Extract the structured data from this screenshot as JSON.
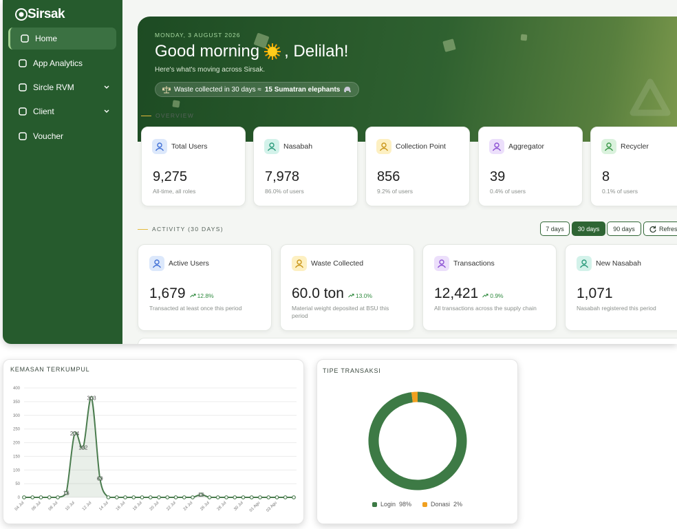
{
  "sidebar": {
    "logo": "Sirsak",
    "nav": [
      {
        "label": "Home",
        "active": true
      },
      {
        "label": "App Analytics"
      },
      {
        "label": "Sircle RVM",
        "submenu": true
      },
      {
        "label": "Client",
        "submenu": true
      },
      {
        "label": "Voucher"
      }
    ]
  },
  "hero": {
    "date": "MONDAY, 3 AUGUST 2026",
    "greeting": "Good morning",
    "name": ", Delilah!",
    "subtitle": "Here's what's moving across Sirsak.",
    "pill_text": "Waste collected in 30 days ≈",
    "pill_highlight": "15 Sumatran elephants"
  },
  "overview": {
    "title": "OVERVIEW",
    "cards": [
      {
        "label": "Total Users",
        "value": "9,275",
        "sub": "All-time, all roles"
      },
      {
        "label": "Nasabah",
        "value": "7,978",
        "sub": "86.0% of users"
      },
      {
        "label": "Collection Point",
        "value": "856",
        "sub": "9.2% of users"
      },
      {
        "label": "Aggregator",
        "value": "39",
        "sub": "0.4% of users"
      },
      {
        "label": "Recycler",
        "value": "8",
        "sub": "0.1% of users"
      }
    ]
  },
  "activity": {
    "title": "ACTIVITY (30 DAYS)",
    "ranges": [
      {
        "label": "7 days"
      },
      {
        "label": "30 days",
        "selected": true
      },
      {
        "label": "90 days"
      }
    ],
    "refresh": "Refresh",
    "cards": [
      {
        "label": "Active Users",
        "value": "1,679",
        "change": "12.8%",
        "sub": "Transacted at least once this period"
      },
      {
        "label": "Waste Collected",
        "value": "60.0 ton",
        "change": "13.0%",
        "sub": "Material weight deposited at BSU this period"
      },
      {
        "label": "Transactions",
        "value": "12,421",
        "change": "0.9%",
        "sub": "All transactions across the supply chain"
      },
      {
        "label": "New Nasabah",
        "value": "1,071",
        "sub": "Nasabah registered this period"
      }
    ]
  },
  "chart_data": [
    {
      "type": "line",
      "title": "KEMASAN TERKUMPUL",
      "categories": [
        "04 Jul",
        null,
        "06 Jul",
        null,
        "08 Jul",
        null,
        "10 Jul",
        null,
        "12 Jul",
        null,
        "14 Jul",
        null,
        "16 Jul",
        null,
        "18 Jul",
        null,
        "20 Jul",
        null,
        "22 Jul",
        null,
        "24 Jul",
        null,
        "26 Jul",
        null,
        "28 Jul",
        null,
        "30 Jul",
        null,
        "01 Agu",
        null,
        "03 Agu",
        null,
        null
      ],
      "values": [
        0,
        0,
        0,
        0,
        0,
        16,
        234,
        182,
        363,
        69,
        0,
        0,
        0,
        0,
        0,
        0,
        0,
        0,
        0,
        0,
        0,
        10,
        0,
        0,
        0,
        0,
        0,
        0,
        0,
        0,
        0,
        0,
        0
      ],
      "color": "#4a7c4e",
      "ylim": [
        0,
        400
      ],
      "yticks": [
        0,
        50,
        100,
        150,
        200,
        250,
        300,
        350,
        400
      ],
      "grid": true
    },
    {
      "type": "donut",
      "title": "TIPE TRANSAKSI",
      "categories": [
        "Login",
        "Donasi"
      ],
      "values": [
        98,
        2
      ],
      "value_labels": [
        "98%",
        "2%"
      ],
      "colors": [
        "#3d7a45",
        "#f0a020"
      ],
      "legend": "bottom"
    }
  ]
}
